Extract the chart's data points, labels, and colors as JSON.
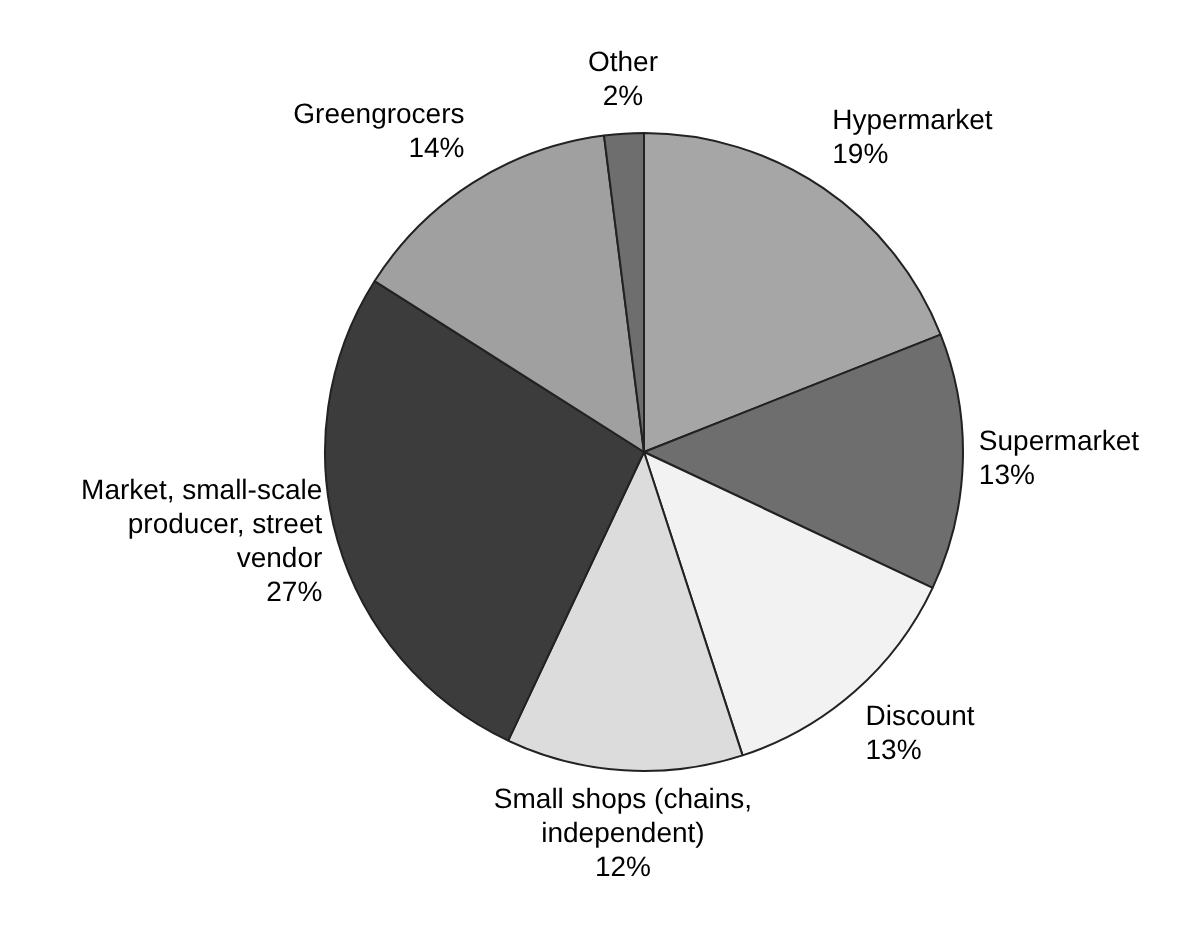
{
  "chart_data": {
    "type": "pie",
    "categories": [
      "Hypermarket",
      "Supermarket",
      "Discount",
      "Small shops (chains, independent)",
      "Market, small-scale producer, street vendor",
      "Greengrocers",
      "Other"
    ],
    "values": [
      19,
      13,
      13,
      12,
      27,
      14,
      2
    ],
    "value_labels": [
      "19%",
      "13%",
      "13%",
      "12%",
      "27%",
      "14%",
      "2%"
    ],
    "colors": [
      "#a6a6a6",
      "#6e6e6e",
      "#f2f2f2",
      "#dcdcdc",
      "#3c3c3c",
      "#a0a0a0",
      "#6e6e6e"
    ],
    "legend": false
  }
}
